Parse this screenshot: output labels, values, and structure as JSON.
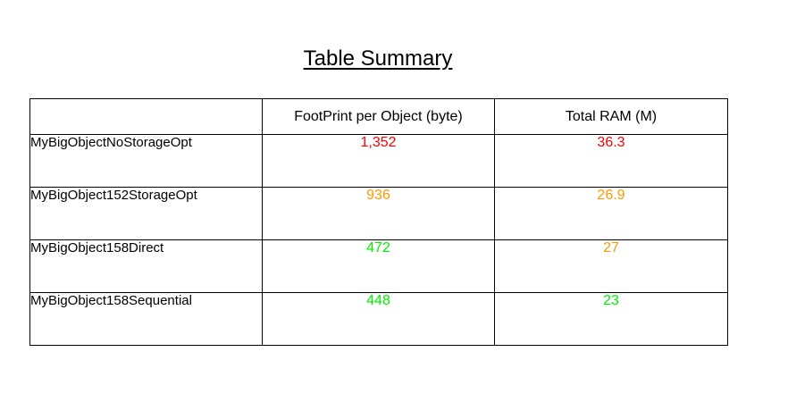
{
  "title": "Table Summary",
  "colors": {
    "red": "#ff0000",
    "orange": "#ff9900",
    "green": "#00ee00"
  },
  "table": {
    "headers": [
      "",
      "FootPrint per Object (byte)",
      "Total RAM (M)"
    ],
    "rows": [
      {
        "name": "MyBigObjectNoStorageOpt",
        "footprint": {
          "text": "1,352",
          "color": "red"
        },
        "total_ram": {
          "text": "36.3",
          "color": "red"
        }
      },
      {
        "name": "MyBigObject152StorageOpt",
        "footprint": {
          "text": "936",
          "color": "orange"
        },
        "total_ram": {
          "text": "26.9",
          "color": "orange"
        }
      },
      {
        "name": "MyBigObject158Direct",
        "footprint": {
          "text": "472",
          "color": "green"
        },
        "total_ram": {
          "text": "27",
          "color": "orange"
        }
      },
      {
        "name": "MyBigObject158Sequential",
        "footprint": {
          "text": "448",
          "color": "green"
        },
        "total_ram": {
          "text": "23",
          "color": "green"
        }
      }
    ]
  }
}
